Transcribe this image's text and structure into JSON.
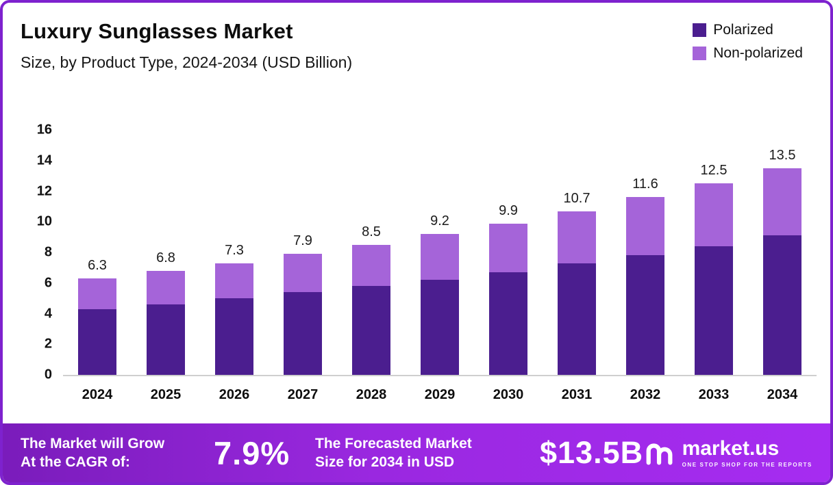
{
  "header": {
    "title": "Luxury Sunglasses Market",
    "subtitle": "Size, by Product Type, 2024-2034 (USD Billion)"
  },
  "legend": [
    {
      "label": "Polarized",
      "color": "#4b1e8f"
    },
    {
      "label": "Non-polarized",
      "color": "#a564d9"
    }
  ],
  "chart_data": {
    "type": "bar",
    "stacked": true,
    "title": "Luxury Sunglasses Market",
    "subtitle": "Size, by Product Type, 2024-2034 (USD Billion)",
    "categories": [
      "2024",
      "2025",
      "2026",
      "2027",
      "2028",
      "2029",
      "2030",
      "2031",
      "2032",
      "2033",
      "2034"
    ],
    "series": [
      {
        "name": "Polarized",
        "color": "#4b1e8f",
        "values": [
          4.3,
          4.6,
          5.0,
          5.4,
          5.8,
          6.2,
          6.7,
          7.3,
          7.8,
          8.4,
          9.1
        ]
      },
      {
        "name": "Non-polarized",
        "color": "#a564d9",
        "values": [
          2.0,
          2.2,
          2.3,
          2.5,
          2.7,
          3.0,
          3.2,
          3.4,
          3.8,
          4.1,
          4.4
        ]
      }
    ],
    "totals": [
      6.3,
      6.8,
      7.3,
      7.9,
      8.5,
      9.2,
      9.9,
      10.7,
      11.6,
      12.5,
      13.5
    ],
    "total_labels": [
      "6.3",
      "6.8",
      "7.3",
      "7.9",
      "8.5",
      "9.2",
      "9.9",
      "10.7",
      "11.6",
      "12.5",
      "13.5"
    ],
    "xlabel": "",
    "ylabel": "",
    "ylim": [
      0,
      16
    ],
    "yticks": [
      0,
      2,
      4,
      6,
      8,
      10,
      12,
      14,
      16
    ],
    "grid": false,
    "legend_position": "top-right"
  },
  "banner": {
    "cagr_text_line1": "The Market will Grow",
    "cagr_text_line2": "At the CAGR of:",
    "cagr_value": "7.9%",
    "forecast_text_line1": "The Forecasted Market",
    "forecast_text_line2": "Size for 2034 in USD",
    "forecast_value": "$13.5B",
    "brand_name": "market.us",
    "brand_tagline": "ONE STOP SHOP FOR THE REPORTS"
  }
}
